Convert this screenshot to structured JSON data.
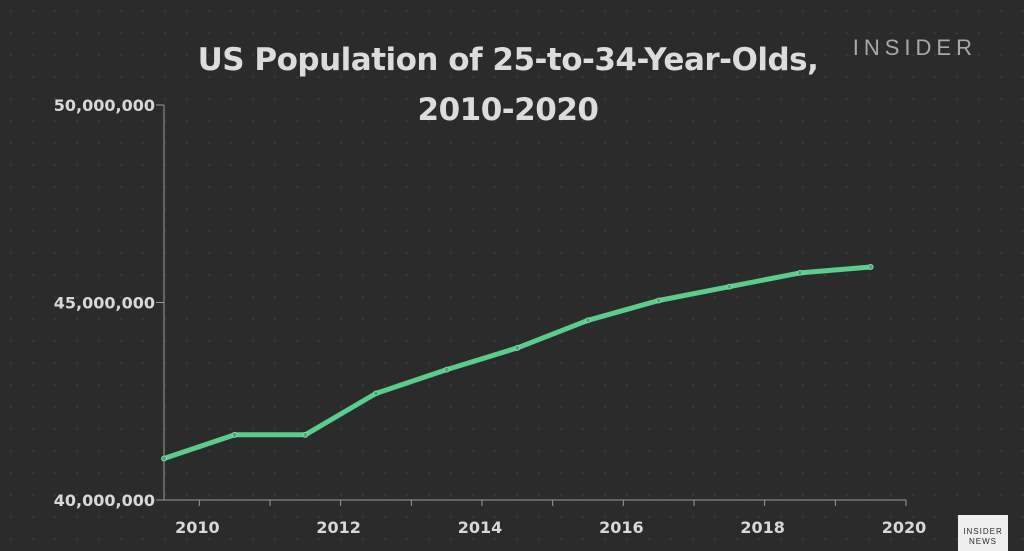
{
  "brand": "INSIDER",
  "news_logo": {
    "line1": "INSIDER",
    "line2": "NEWS"
  },
  "chart_data": {
    "type": "line",
    "title": "US Population of 25-to-34-Year-Olds, 2010-2020",
    "title_lines": [
      "US Population of 25-to-34-Year-Olds,",
      "2010-2020"
    ],
    "xlabel": "",
    "ylabel": "",
    "x": [
      2009.5,
      2010.5,
      2011.5,
      2012.5,
      2013.5,
      2014.5,
      2015.5,
      2016.5,
      2017.5,
      2018.5,
      2019.5
    ],
    "series": [
      {
        "values": [
          41050000,
          41650000,
          41650000,
          42700000,
          43300000,
          43850000,
          44550000,
          45050000,
          45400000,
          45750000,
          45900000
        ],
        "color": "#5bcb8e"
      }
    ],
    "xticks": [
      "2010",
      "2012",
      "2014",
      "2016",
      "2018",
      "2020"
    ],
    "yticks": [
      "40,000,000",
      "45,000,000",
      "50,000,000"
    ],
    "ytick_values": [
      40000000,
      45000000,
      50000000
    ],
    "ylim": [
      40000000,
      50000000
    ],
    "xlim": [
      2009.5,
      2020.0
    ],
    "grid": false,
    "legend": "none"
  }
}
